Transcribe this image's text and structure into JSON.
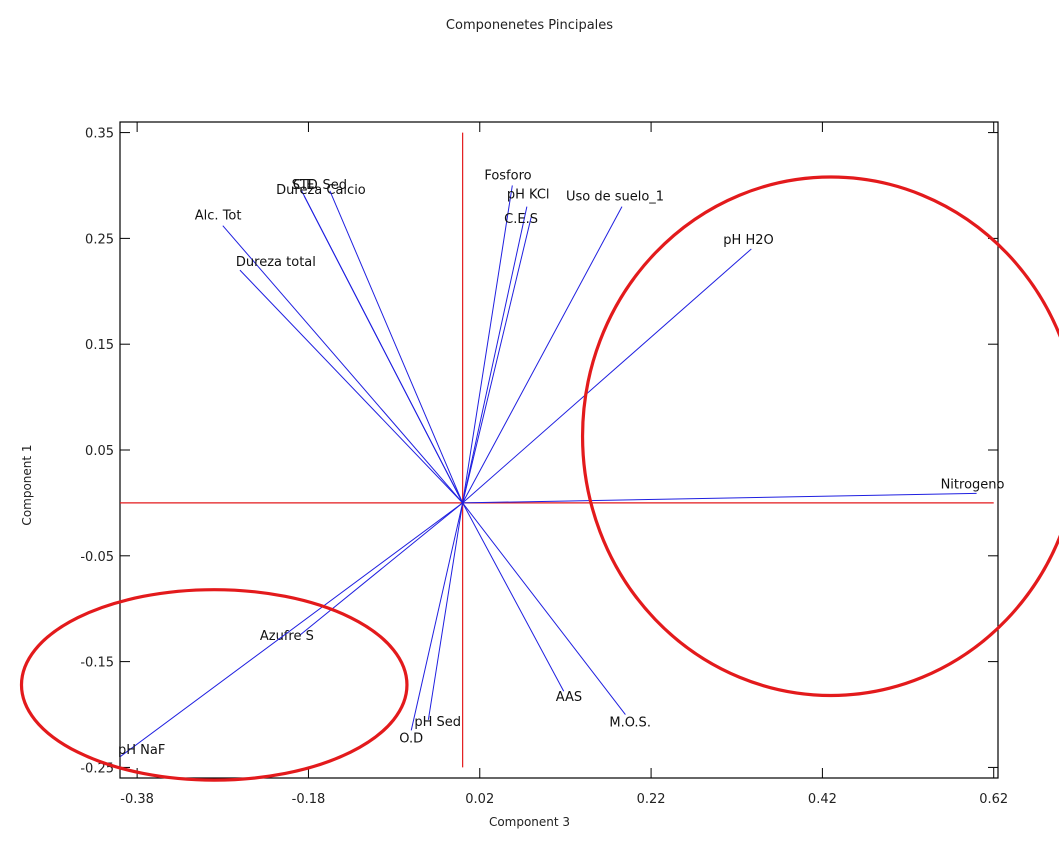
{
  "chart_data": {
    "type": "biplot",
    "title": "Componenetes Pincipales",
    "xlabel": "Component 3",
    "ylabel": "Component 1",
    "xlim": [
      -0.4,
      0.625
    ],
    "ylim": [
      -0.26,
      0.36
    ],
    "xticks": [
      -0.38,
      -0.18,
      0.02,
      0.22,
      0.42,
      0.62
    ],
    "yticks": [
      -0.25,
      -0.15,
      -0.05,
      0.05,
      0.15,
      0.25,
      0.35
    ],
    "xtick_labels": [
      "-0.38",
      "-0.18",
      "0.02",
      "0.22",
      "0.42",
      "0.62"
    ],
    "ytick_labels": [
      "-0.25",
      "-0.15",
      "-0.05",
      "0.05",
      "0.15",
      "0.25",
      "0.35"
    ],
    "origin": [
      0.0,
      0.0
    ],
    "reference_lines": [
      {
        "orientation": "vertical",
        "x": 0.0,
        "from": -0.25,
        "to": 0.35,
        "color": "#e31a1c"
      },
      {
        "orientation": "horizontal",
        "y": 0.0,
        "from": -0.4,
        "to": 0.62,
        "color": "#e31a1c"
      }
    ],
    "vectors": [
      {
        "label": "Fosforo",
        "x": 0.058,
        "y": 0.3
      },
      {
        "label": "pH KCl",
        "x": 0.075,
        "y": 0.28
      },
      {
        "label": "C.E.S",
        "x": 0.08,
        "y": 0.27
      },
      {
        "label": "Uso de suelo_1",
        "x": 0.186,
        "y": 0.28
      },
      {
        "label": "pH H2O",
        "x": 0.337,
        "y": 0.24
      },
      {
        "label": "Nitrogeno",
        "x": 0.6,
        "y": 0.009
      },
      {
        "label": "STD",
        "x": -0.188,
        "y": 0.295
      },
      {
        "label": "Dureza Calcio",
        "x": -0.185,
        "y": 0.29
      },
      {
        "label": "C.E. Sed",
        "x": -0.155,
        "y": 0.295
      },
      {
        "label": "Alc. Tot",
        "x": -0.28,
        "y": 0.262
      },
      {
        "label": "Dureza total",
        "x": -0.26,
        "y": 0.22
      },
      {
        "label": "Azufre S",
        "x": -0.19,
        "y": -0.125
      },
      {
        "label": "pH NaF",
        "x": -0.4,
        "y": -0.24
      },
      {
        "label": "pH Sed",
        "x": -0.04,
        "y": -0.205
      },
      {
        "label": "O.D",
        "x": -0.06,
        "y": -0.215
      },
      {
        "label": "AAS",
        "x": 0.118,
        "y": -0.178
      },
      {
        "label": "M.O.S.",
        "x": 0.19,
        "y": -0.2
      }
    ],
    "vector_color": "#1f1fe0",
    "highlight_ellipses": [
      {
        "cx": 0.43,
        "cy": 0.063,
        "rx": 0.29,
        "ry": 0.245,
        "color": "#e31a1c"
      },
      {
        "cx": -0.29,
        "cy": -0.172,
        "rx": 0.225,
        "ry": 0.09,
        "color": "#e31a1c"
      }
    ]
  }
}
